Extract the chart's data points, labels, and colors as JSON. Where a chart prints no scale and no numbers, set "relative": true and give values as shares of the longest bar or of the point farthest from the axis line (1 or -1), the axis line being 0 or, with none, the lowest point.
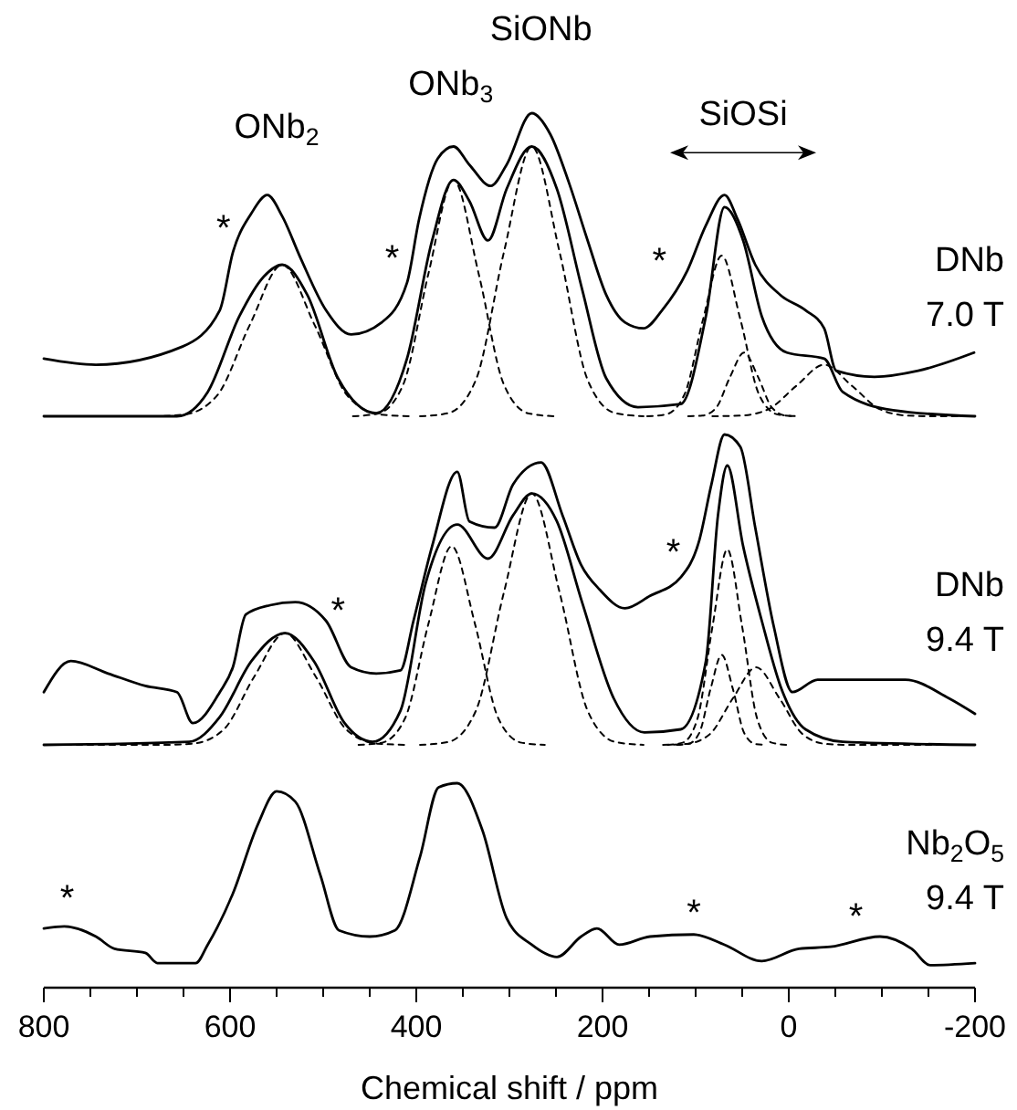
{
  "chart_data": [
    {
      "type": "line",
      "relative": true,
      "xlim": [
        800,
        -200
      ],
      "tick_labels": false,
      "annotations": [
        "ONb$_{2}$",
        "ONb$_{3}$",
        "SiONb",
        "SiOSi",
        "*",
        "*",
        "*",
        "DNb\n7.0 T"
      ],
      "series": [
        {
          "color": "#000000",
          "line_style": "solid",
          "x": [
            800,
            744,
            651,
            611,
            597,
            577,
            560,
            544,
            524,
            497,
            470,
            437,
            410,
            397,
            377,
            360,
            343,
            320,
            303,
            276,
            256,
            236,
            216,
            196,
            176,
            156,
            136,
            109,
            89,
            69,
            55,
            36,
            9,
            -18,
            -38,
            -51,
            -92,
            -139,
            -199
          ],
          "values": [
            0.19,
            0.17,
            0.23,
            0.35,
            0.54,
            0.67,
            0.73,
            0.66,
            0.52,
            0.35,
            0.27,
            0.31,
            0.44,
            0.65,
            0.85,
            0.89,
            0.83,
            0.76,
            0.83,
            1.0,
            0.93,
            0.77,
            0.58,
            0.4,
            0.31,
            0.29,
            0.35,
            0.48,
            0.63,
            0.73,
            0.65,
            0.5,
            0.4,
            0.35,
            0.29,
            0.15,
            0.13,
            0.15,
            0.21
          ]
        },
        {
          "color": "#000000",
          "line_style": "solid",
          "x": [
            800,
            657,
            624,
            590,
            564,
            544,
            517,
            484,
            443,
            410,
            383,
            360,
            343,
            323,
            303,
            276,
            249,
            222,
            196,
            162,
            116,
            89,
            69,
            49,
            29,
            2,
            -38,
            -58,
            -112,
            -200
          ],
          "values": [
            0,
            0,
            0.08,
            0.33,
            0.46,
            0.5,
            0.4,
            0.125,
            0.01,
            0.19,
            0.58,
            0.78,
            0.71,
            0.58,
            0.75,
            0.89,
            0.75,
            0.42,
            0.125,
            0.03,
            0.04,
            0.33,
            0.69,
            0.58,
            0.33,
            0.21,
            0.19,
            0.08,
            0.02,
            0
          ]
        },
        {
          "color": "#000000",
          "line_style": "dashed",
          "x": [
            800,
            684,
            649,
            614,
            579,
            544,
            509,
            474,
            439,
            404
          ],
          "values": [
            0,
            0,
            0.006,
            0.068,
            0.3,
            0.5,
            0.3,
            0.068,
            0.006,
            0
          ]
        },
        {
          "color": "#000000",
          "line_style": "dashed",
          "x": [
            468,
            441,
            414,
            387,
            360,
            333,
            306,
            279,
            252
          ],
          "values": [
            0,
            0.009,
            0.105,
            0.47,
            0.78,
            0.47,
            0.105,
            0.009,
            0
          ]
        },
        {
          "color": "#000000",
          "line_style": "dashed",
          "x": [
            396,
            366,
            336,
            306,
            276,
            246,
            216,
            186,
            156
          ],
          "values": [
            0,
            0.01,
            0.12,
            0.54,
            0.89,
            0.54,
            0.12,
            0.01,
            0
          ]
        },
        {
          "color": "#000000",
          "line_style": "dashed",
          "x": [
            152,
            132,
            112,
            92,
            72,
            52,
            32,
            12,
            -8
          ],
          "values": [
            0,
            0.006,
            0.072,
            0.32,
            0.53,
            0.32,
            0.072,
            0.006,
            0
          ]
        },
        {
          "color": "#000000",
          "line_style": "dashed",
          "x": [
            108,
            93,
            78,
            63,
            48,
            33,
            18,
            3,
            -12
          ],
          "values": [
            0,
            0.002,
            0.028,
            0.13,
            0.21,
            0.13,
            0.028,
            0.002,
            0
          ]
        },
        {
          "color": "#000000",
          "line_style": "dashed",
          "x": [
            82,
            52,
            22,
            -8,
            -38,
            -68,
            -98,
            -128,
            -158,
            -200
          ],
          "values": [
            0,
            0.002,
            0.023,
            0.1,
            0.17,
            0.1,
            0.023,
            0.002,
            0,
            0
          ]
        }
      ]
    },
    {
      "type": "line",
      "relative": true,
      "xlim": [
        800,
        -200
      ],
      "tick_labels": false,
      "annotations": [
        "*",
        "*",
        "DNb\n9.4 T"
      ],
      "series": [
        {
          "color": "#000000",
          "line_style": "solid",
          "x": [
            800,
            771,
            731,
            691,
            657,
            640,
            611,
            597,
            583,
            557,
            530,
            497,
            470,
            443,
            417,
            403,
            383,
            356,
            343,
            316,
            296,
            266,
            243,
            223,
            203,
            176,
            149,
            116,
            96,
            83,
            69,
            52,
            36,
            16,
            -4,
            -31,
            -72,
            -125,
            -172,
            -200
          ],
          "values": [
            0.17,
            0.27,
            0.23,
            0.19,
            0.17,
            0.07,
            0.17,
            0.25,
            0.42,
            0.45,
            0.46,
            0.4,
            0.25,
            0.23,
            0.24,
            0.4,
            0.64,
            0.88,
            0.72,
            0.7,
            0.84,
            0.91,
            0.74,
            0.58,
            0.5,
            0.44,
            0.48,
            0.54,
            0.66,
            0.84,
            1,
            0.96,
            0.7,
            0.38,
            0.17,
            0.21,
            0.21,
            0.21,
            0.15,
            0.1
          ]
        },
        {
          "color": "#000000",
          "line_style": "solid",
          "x": [
            800,
            644,
            611,
            577,
            541,
            510,
            477,
            447,
            417,
            390,
            356,
            323,
            296,
            276,
            249,
            222,
            188,
            155,
            116,
            89,
            76,
            66,
            49,
            29,
            9,
            -18,
            -58,
            -200
          ],
          "values": [
            0,
            0.01,
            0.09,
            0.27,
            0.36,
            0.27,
            0.07,
            0.01,
            0.11,
            0.52,
            0.71,
            0.6,
            0.74,
            0.81,
            0.72,
            0.46,
            0.15,
            0.04,
            0.05,
            0.27,
            0.74,
            0.9,
            0.64,
            0.4,
            0.19,
            0.05,
            0.01,
            0
          ]
        },
        {
          "color": "#000000",
          "line_style": "dashed",
          "x": [
            800,
            673,
            640,
            607,
            574,
            541,
            508,
            475,
            442,
            409
          ],
          "values": [
            0,
            0,
            0.004,
            0.049,
            0.22,
            0.36,
            0.22,
            0.049,
            0.004,
            0
          ]
        },
        {
          "color": "#000000",
          "line_style": "dashed",
          "x": [
            462,
            437,
            412,
            387,
            362,
            337,
            312,
            287,
            262
          ],
          "values": [
            0,
            0.007,
            0.086,
            0.39,
            0.64,
            0.39,
            0.086,
            0.007,
            0
          ]
        },
        {
          "color": "#000000",
          "line_style": "dashed",
          "x": [
            396,
            366,
            336,
            306,
            276,
            246,
            216,
            186,
            156
          ],
          "values": [
            0,
            0.009,
            0.11,
            0.49,
            0.81,
            0.49,
            0.11,
            0.009,
            0
          ]
        },
        {
          "color": "#000000",
          "line_style": "dashed",
          "x": [
            130,
            114,
            98,
            82,
            66,
            50,
            34,
            18,
            2
          ],
          "values": [
            0,
            0.007,
            0.085,
            0.38,
            0.63,
            0.38,
            0.085,
            0.007,
            0
          ]
        },
        {
          "color": "#000000",
          "line_style": "dashed",
          "x": [
            120,
            108,
            96,
            84,
            72,
            60,
            48,
            36,
            24
          ],
          "values": [
            0,
            0.003,
            0.039,
            0.18,
            0.29,
            0.18,
            0.039,
            0.003,
            0
          ]
        },
        {
          "color": "#000000",
          "line_style": "dashed",
          "x": [
            135,
            110,
            85,
            60,
            35,
            10,
            -15,
            -40,
            -65,
            -200
          ],
          "values": [
            0,
            0.003,
            0.034,
            0.15,
            0.25,
            0.15,
            0.034,
            0.003,
            0,
            0
          ]
        }
      ]
    },
    {
      "type": "line",
      "relative": true,
      "xlim": [
        800,
        -200
      ],
      "xlabel": "Chemical shift  / ppm",
      "xticks": [
        800,
        {
          "value": 750,
          "label": null
        },
        {
          "value": 700,
          "label": null
        },
        {
          "value": 650,
          "label": null
        },
        600,
        {
          "value": 550,
          "label": null
        },
        {
          "value": 500,
          "label": null
        },
        {
          "value": 450,
          "label": null
        },
        400,
        {
          "value": 350,
          "label": null
        },
        {
          "value": 300,
          "label": null
        },
        {
          "value": 250,
          "label": null
        },
        200,
        {
          "value": 150,
          "label": null
        },
        {
          "value": 100,
          "label": null
        },
        {
          "value": 50,
          "label": null
        },
        0,
        {
          "value": -50,
          "label": null
        },
        {
          "value": -100,
          "label": null
        },
        {
          "value": -150,
          "label": null
        },
        -200
      ],
      "annotations": [
        "*",
        "*",
        "*",
        "Nb$_{2}$O$_{5}$\n9.4 T"
      ],
      "series": [
        {
          "color": "#000000",
          "line_style": "solid",
          "x": [
            800,
            778,
            744,
            724,
            691,
            678,
            637,
            624,
            597,
            570,
            550,
            530,
            503,
            483,
            450,
            423,
            396,
            376,
            356,
            329,
            303,
            276,
            249,
            223,
            206,
            182,
            149,
            102,
            69,
            29,
            -11,
            -45,
            -98,
            -132,
            -152,
            -200
          ],
          "values": [
            0.29,
            0.3,
            0.25,
            0.19,
            0.17,
            0.12,
            0.12,
            0.21,
            0.46,
            0.8,
            0.96,
            0.91,
            0.55,
            0.28,
            0.25,
            0.28,
            0.64,
            0.98,
            1,
            0.77,
            0.34,
            0.21,
            0.15,
            0.25,
            0.29,
            0.21,
            0.25,
            0.26,
            0.21,
            0.13,
            0.19,
            0.2,
            0.25,
            0.19,
            0.11,
            0.12
          ]
        }
      ]
    }
  ]
}
